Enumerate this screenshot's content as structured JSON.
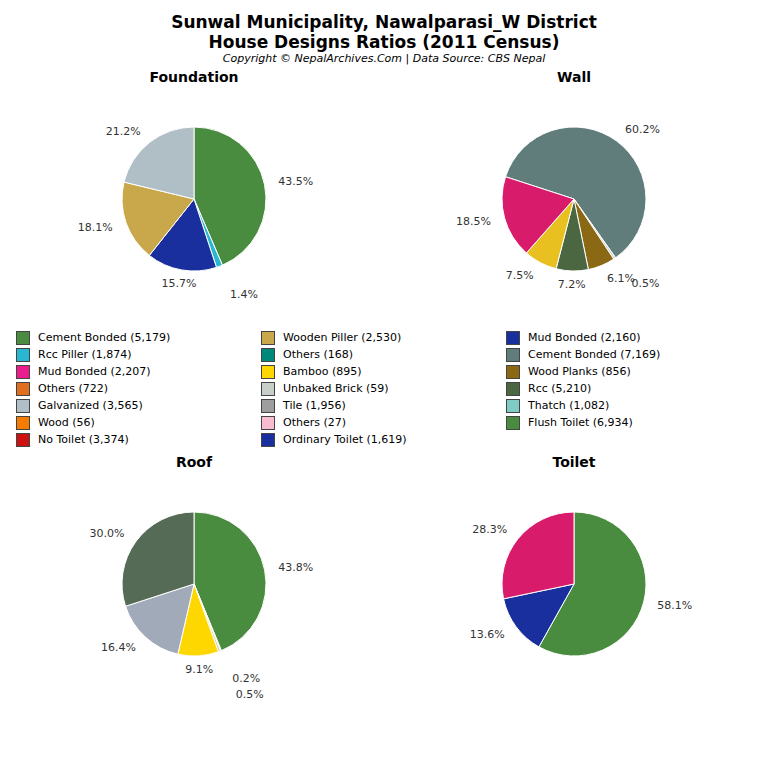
{
  "title": "Sunwal Municipality, Nawalparasi_W District",
  "subtitle": "House Designs Ratios (2011 Census)",
  "annotations": [
    "Copyright © NepalArchives.Com | Data Source: CBS Nepal"
  ],
  "series": [
    {
      "name": "Cement Bonded (5,179)",
      "color": "#4a8c3f"
    },
    {
      "name": "Rcc Piller (1,874)",
      "color": "#29b6d0"
    },
    {
      "name": "Mud Bonded (2,207)",
      "color": "#e91e8c"
    },
    {
      "name": "Others (722)",
      "color": "#e07020"
    },
    {
      "name": "Galvanized (3,565)",
      "color": "#b0bec5"
    },
    {
      "name": "Wood (56)",
      "color": "#f57c00"
    },
    {
      "name": "No Toilet (3,374)",
      "color": "#cc1111"
    },
    {
      "name": "Wooden Piller (2,530)",
      "color": "#c8a84b"
    },
    {
      "name": "Others (168)",
      "color": "#00897b"
    },
    {
      "name": "Bamboo (895)",
      "color": "#ffd700"
    },
    {
      "name": "Unbaked Brick (59)",
      "color": "#c8cfc8"
    },
    {
      "name": "Tile (1,956)",
      "color": "#9e9e9e"
    },
    {
      "name": "Others (27)",
      "color": "#f8bbd0"
    },
    {
      "name": "Ordinary Toilet (1,619)",
      "color": "#1a2f9e"
    },
    {
      "name": "Mud Bonded (2,160)",
      "color": "#1a2f9e"
    },
    {
      "name": "Cement Bonded (7,169)",
      "color": "#607d7b"
    },
    {
      "name": "Wood Planks (856)",
      "color": "#8b6914"
    },
    {
      "name": "Rcc (5,210)",
      "color": "#4a6741"
    },
    {
      "name": "Thatch (1,082)",
      "color": "#80cbc4"
    },
    {
      "name": "Flush Toilet (6,934)",
      "color": "#4a8c3f"
    }
  ],
  "chart_data": [
    {
      "type": "pie",
      "title": "Foundation",
      "values": [
        43.5,
        1.4,
        15.7,
        18.1,
        21.2
      ],
      "value_labels": [
        "43.5%",
        "1.4%",
        "15.7%",
        "18.1%",
        "21.2%"
      ],
      "colors": [
        "#4a8c3f",
        "#29b6d0",
        "#1a2f9e",
        "#c8a84b",
        "#b0bec5"
      ],
      "data_labels": true
    },
    {
      "type": "pie",
      "title": "Wall",
      "values": [
        60.2,
        0.5,
        6.1,
        7.2,
        7.5,
        18.5
      ],
      "value_labels": [
        "60.2%",
        "0.5%",
        "6.1%",
        "7.2%",
        "7.5%",
        "18.5%"
      ],
      "colors": [
        "#607d7b",
        "#d0d0d0",
        "#8b6914",
        "#4a6741",
        "#e8c020",
        "#d81b6a"
      ],
      "data_labels": true
    },
    {
      "type": "pie",
      "title": "Roof",
      "values": [
        43.8,
        0.2,
        0.5,
        9.1,
        16.4,
        30.0
      ],
      "value_labels": [
        "43.8%",
        "0.2%",
        "0.5%",
        "9.1%",
        "16.4%",
        "30.0%"
      ],
      "colors": [
        "#4a8c3f",
        "#e07020",
        "#c8d0b0",
        "#ffd700",
        "#a0aab8",
        "#556b55"
      ],
      "data_labels": true
    },
    {
      "type": "pie",
      "title": "Toilet",
      "values": [
        58.1,
        13.6,
        28.3
      ],
      "value_labels": [
        "58.1%",
        "13.6%",
        "28.3%"
      ],
      "colors": [
        "#4a8c3f",
        "#1a2f9e",
        "#d81b6a"
      ],
      "data_labels": true
    }
  ]
}
